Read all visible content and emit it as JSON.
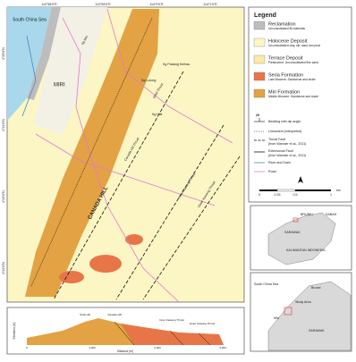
{
  "map": {
    "sea_label": "South China Sea",
    "city_label": "MIRI",
    "hill_label": "CANADA HILL",
    "river_label": "Sg Miri",
    "places": [
      "Kg Padang Kerbau",
      "Kg Lutong",
      "Kg Hilir"
    ],
    "faults": [
      "Canada Hill Thrust",
      "Shell Thrust",
      "Inner Kawang Thrust",
      "Outer Kawang Thrust"
    ],
    "lon_labels": [
      "113°58'0\"E",
      "113°59'0\"E",
      "114°0'0\"E",
      "114°1'0\"E"
    ],
    "lat_labels": [
      "4°25'0\"N",
      "4°24'0\"N",
      "4°23'0\"N",
      "4°22'0\"N"
    ]
  },
  "legend": {
    "title": "Legend",
    "units": [
      {
        "name": "Reclamation",
        "desc": "Unconsolidated fill materials"
      },
      {
        "name": "Holocene Deposit",
        "desc": "Unconsolidated clay, silt, sand and peat"
      },
      {
        "name": "Terrace Deposit",
        "desc": "Pleistocene: Unconsolidated fine sand"
      },
      {
        "name": "Seria Formation",
        "desc": "Late Miocene: Sandstone and shale"
      },
      {
        "name": "Miri Formation",
        "desc": "Middle Miocene: Sandstone and shale"
      }
    ],
    "bedding": {
      "label": "Bedding with dip angle",
      "dip": "25"
    },
    "symbols": [
      {
        "label": "Lineament (interpreted)"
      },
      {
        "label": "Thrust Fault",
        "note": "(from Wannier et al., 2011)"
      },
      {
        "label": "Extensional Fault",
        "note": "(from Wannier et al., 2011)"
      },
      {
        "label": "River and Drain"
      },
      {
        "label": "Road"
      }
    ]
  },
  "scale": {
    "labels": [
      "0",
      "0.25",
      "0.5",
      "1"
    ],
    "unit": "km"
  },
  "inset": {
    "countries": [
      "BRUNEI",
      "SABAH",
      "SARAWAK",
      "KALIMANTAN INDONESIA"
    ],
    "sea": "South China Sea",
    "study_area": "Study Area",
    "places": [
      "Brunei",
      "Miri",
      "SARAWAK"
    ]
  },
  "cross_section": {
    "y_label": "Elevation (m)",
    "x_label": "Distance (m)",
    "x_ticks": [
      "0",
      "1,000",
      "2,000",
      "3,000"
    ],
    "labels": [
      "Shell Hill",
      "Canada Hill",
      "Inner Kawang Thrust",
      "Outer Kawang Thrust"
    ]
  }
}
